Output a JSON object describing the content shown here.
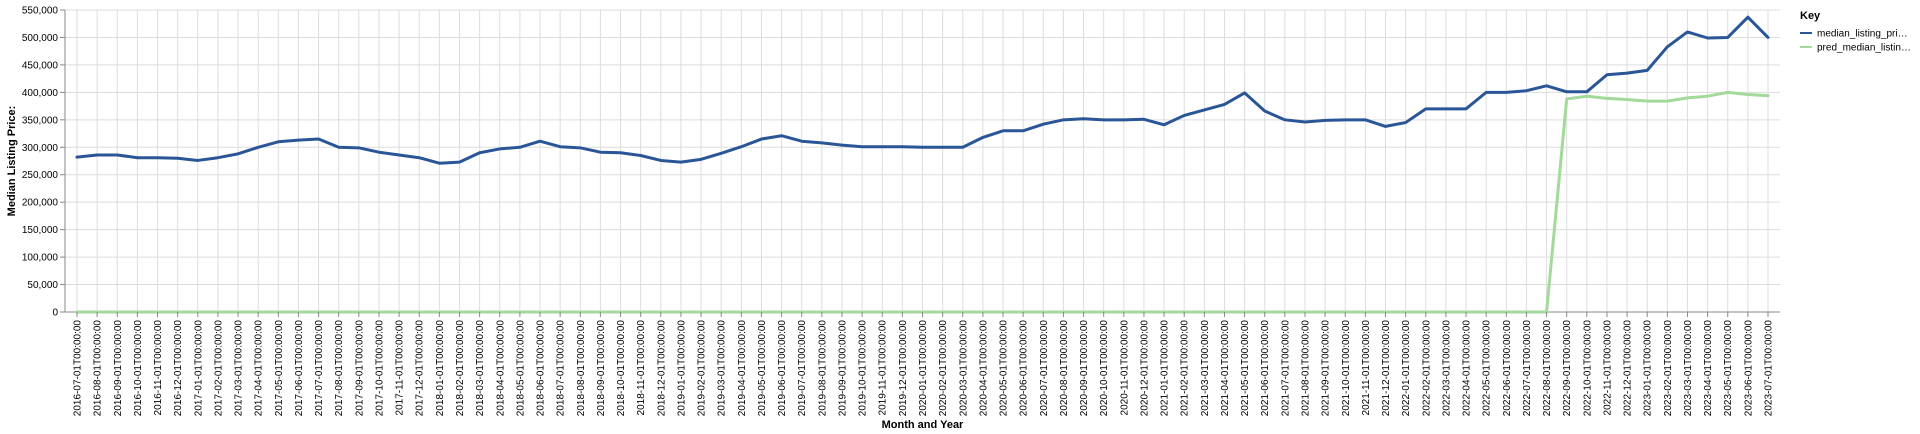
{
  "chart_data": {
    "type": "line",
    "xlabel": "Month and Year",
    "ylabel": "Median Listing Price:",
    "ylim": [
      0,
      550000
    ],
    "yticks": [
      0,
      50000,
      100000,
      150000,
      200000,
      250000,
      300000,
      350000,
      400000,
      450000,
      500000,
      550000
    ],
    "ytick_labels": [
      "0",
      "50,000",
      "100,000",
      "150,000",
      "200,000",
      "250,000",
      "300,000",
      "350,000",
      "400,000",
      "450,000",
      "500,000",
      "550,000"
    ],
    "grid": true,
    "legend": {
      "title": "Key",
      "placement": "right",
      "labels": [
        "median_listing_pri…",
        "pred_median_listin…"
      ]
    },
    "x": [
      "2016-07-01T00:00:00",
      "2016-08-01T00:00:00",
      "2016-09-01T00:00:00",
      "2016-10-01T00:00:00",
      "2016-11-01T00:00:00",
      "2016-12-01T00:00:00",
      "2017-01-01T00:00:00",
      "2017-02-01T00:00:00",
      "2017-03-01T00:00:00",
      "2017-04-01T00:00:00",
      "2017-05-01T00:00:00",
      "2017-06-01T00:00:00",
      "2017-07-01T00:00:00",
      "2017-08-01T00:00:00",
      "2017-09-01T00:00:00",
      "2017-10-01T00:00:00",
      "2017-11-01T00:00:00",
      "2017-12-01T00:00:00",
      "2018-01-01T00:00:00",
      "2018-02-01T00:00:00",
      "2018-03-01T00:00:00",
      "2018-04-01T00:00:00",
      "2018-05-01T00:00:00",
      "2018-06-01T00:00:00",
      "2018-07-01T00:00:00",
      "2018-08-01T00:00:00",
      "2018-09-01T00:00:00",
      "2018-10-01T00:00:00",
      "2018-11-01T00:00:00",
      "2018-12-01T00:00:00",
      "2019-01-01T00:00:00",
      "2019-02-01T00:00:00",
      "2019-03-01T00:00:00",
      "2019-04-01T00:00:00",
      "2019-05-01T00:00:00",
      "2019-06-01T00:00:00",
      "2019-07-01T00:00:00",
      "2019-08-01T00:00:00",
      "2019-09-01T00:00:00",
      "2019-10-01T00:00:00",
      "2019-11-01T00:00:00",
      "2019-12-01T00:00:00",
      "2020-01-01T00:00:00",
      "2020-02-01T00:00:00",
      "2020-03-01T00:00:00",
      "2020-04-01T00:00:00",
      "2020-05-01T00:00:00",
      "2020-06-01T00:00:00",
      "2020-07-01T00:00:00",
      "2020-08-01T00:00:00",
      "2020-09-01T00:00:00",
      "2020-10-01T00:00:00",
      "2020-11-01T00:00:00",
      "2020-12-01T00:00:00",
      "2021-01-01T00:00:00",
      "2021-02-01T00:00:00",
      "2021-03-01T00:00:00",
      "2021-04-01T00:00:00",
      "2021-05-01T00:00:00",
      "2021-06-01T00:00:00",
      "2021-07-01T00:00:00",
      "2021-08-01T00:00:00",
      "2021-09-01T00:00:00",
      "2021-10-01T00:00:00",
      "2021-11-01T00:00:00",
      "2021-12-01T00:00:00",
      "2022-01-01T00:00:00",
      "2022-02-01T00:00:00",
      "2022-03-01T00:00:00",
      "2022-04-01T00:00:00",
      "2022-05-01T00:00:00",
      "2022-06-01T00:00:00",
      "2022-07-01T00:00:00",
      "2022-08-01T00:00:00",
      "2022-09-01T00:00:00",
      "2022-10-01T00:00:00",
      "2022-11-01T00:00:00",
      "2022-12-01T00:00:00",
      "2023-01-01T00:00:00",
      "2023-02-01T00:00:00",
      "2023-03-01T00:00:00",
      "2023-04-01T00:00:00",
      "2023-05-01T00:00:00",
      "2023-06-01T00:00:00",
      "2023-07-01T00:00:00"
    ],
    "series": [
      {
        "name": "median_listing_pri…",
        "color": "#2a5597",
        "values": [
          282000,
          286000,
          286000,
          281000,
          281000,
          280000,
          276000,
          281000,
          288000,
          300000,
          310000,
          313000,
          315000,
          300000,
          299000,
          291000,
          286000,
          281000,
          271000,
          273000,
          290000,
          297000,
          300000,
          311000,
          301000,
          299000,
          291000,
          290000,
          285000,
          276000,
          273000,
          278000,
          289000,
          301000,
          315000,
          321000,
          311000,
          308000,
          304000,
          301000,
          301000,
          301000,
          300000,
          300000,
          300000,
          318000,
          330000,
          330000,
          342000,
          350000,
          352000,
          350000,
          350000,
          351000,
          341000,
          358000,
          368000,
          378000,
          399000,
          366000,
          350000,
          346000,
          349000,
          350000,
          350000,
          338000,
          345000,
          370000,
          370000,
          370000,
          400000,
          400000,
          403000,
          412000,
          401000,
          401000,
          432000,
          435000,
          440000,
          483000,
          510000,
          499000,
          500000,
          537000,
          500000
        ]
      },
      {
        "name": "pred_median_listin…",
        "color": "#a3d99b",
        "values": [
          0,
          0,
          0,
          0,
          0,
          0,
          0,
          0,
          0,
          0,
          0,
          0,
          0,
          0,
          0,
          0,
          0,
          0,
          0,
          0,
          0,
          0,
          0,
          0,
          0,
          0,
          0,
          0,
          0,
          0,
          0,
          0,
          0,
          0,
          0,
          0,
          0,
          0,
          0,
          0,
          0,
          0,
          0,
          0,
          0,
          0,
          0,
          0,
          0,
          0,
          0,
          0,
          0,
          0,
          0,
          0,
          0,
          0,
          0,
          0,
          0,
          0,
          0,
          0,
          0,
          0,
          0,
          0,
          0,
          0,
          0,
          0,
          0,
          0,
          388000,
          393000,
          389000,
          387000,
          384000,
          384000,
          390000,
          393000,
          400000,
          396000,
          394000
        ]
      }
    ]
  }
}
